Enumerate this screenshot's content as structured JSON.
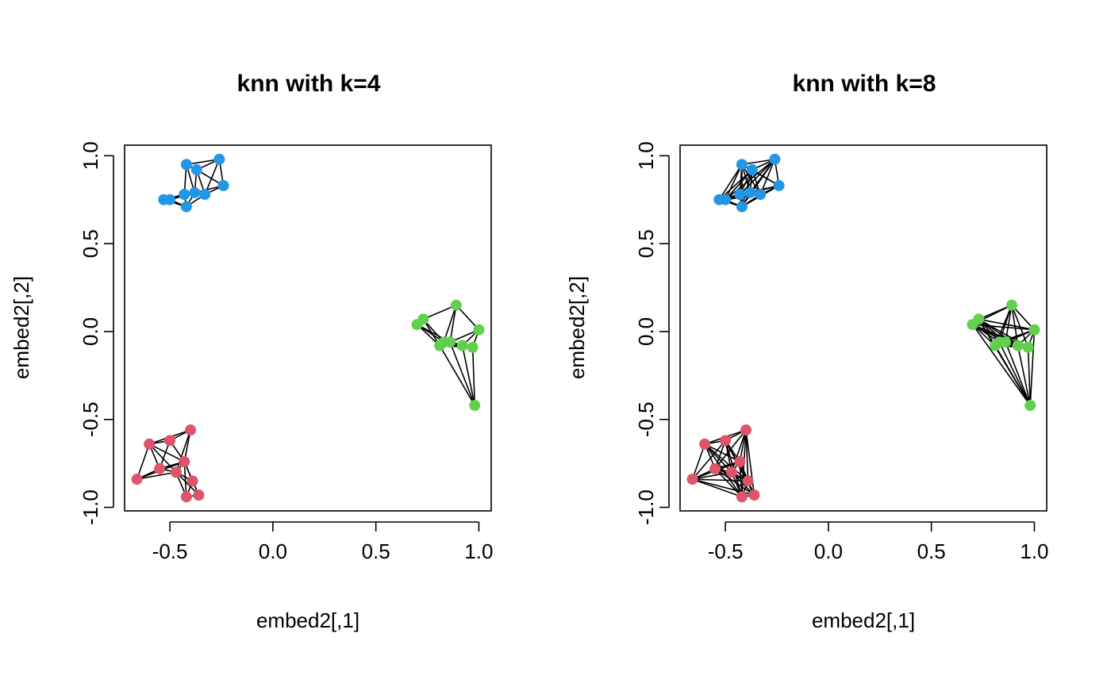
{
  "chart_data": [
    {
      "type": "scatter",
      "title": "knn with k=4",
      "xlabel": "embed2[,1]",
      "ylabel": "embed2[,2]",
      "xlim": [
        -0.72,
        1.06
      ],
      "ylim": [
        -1.02,
        1.06
      ],
      "x_ticks": [
        -0.5,
        0.0,
        0.5,
        1.0
      ],
      "x_tick_labels": [
        "-0.5",
        "0.0",
        "0.5",
        "1.0"
      ],
      "y_ticks": [
        -1.0,
        -0.5,
        0.0,
        0.5,
        1.0
      ],
      "y_tick_labels": [
        "-1.0",
        "-0.5",
        "0.0",
        "0.5",
        "1.0"
      ],
      "k": 4,
      "point_colors": {
        "blue": "#2297E6",
        "green": "#61D04F",
        "red": "#DF536B"
      }
    },
    {
      "type": "scatter",
      "title": "knn with k=8",
      "xlabel": "embed2[,1]",
      "ylabel": "embed2[,2]",
      "xlim": [
        -0.72,
        1.06
      ],
      "ylim": [
        -1.02,
        1.06
      ],
      "x_ticks": [
        -0.5,
        0.0,
        0.5,
        1.0
      ],
      "x_tick_labels": [
        "-0.5",
        "0.0",
        "0.5",
        "1.0"
      ],
      "y_ticks": [
        -1.0,
        -0.5,
        0.0,
        0.5,
        1.0
      ],
      "y_tick_labels": [
        "-1.0",
        "-0.5",
        "0.0",
        "0.5",
        "1.0"
      ],
      "k": 8,
      "point_colors": {
        "blue": "#2297E6",
        "green": "#61D04F",
        "red": "#DF536B"
      }
    }
  ],
  "points": [
    {
      "x": -0.26,
      "y": 0.98,
      "group": "blue"
    },
    {
      "x": -0.42,
      "y": 0.95,
      "group": "blue"
    },
    {
      "x": -0.37,
      "y": 0.92,
      "group": "blue"
    },
    {
      "x": -0.24,
      "y": 0.83,
      "group": "blue"
    },
    {
      "x": -0.38,
      "y": 0.79,
      "group": "blue"
    },
    {
      "x": -0.33,
      "y": 0.78,
      "group": "blue"
    },
    {
      "x": -0.43,
      "y": 0.78,
      "group": "blue"
    },
    {
      "x": -0.53,
      "y": 0.75,
      "group": "blue"
    },
    {
      "x": -0.5,
      "y": 0.75,
      "group": "blue"
    },
    {
      "x": -0.42,
      "y": 0.71,
      "group": "blue"
    },
    {
      "x": 0.89,
      "y": 0.15,
      "group": "green"
    },
    {
      "x": 0.73,
      "y": 0.07,
      "group": "green"
    },
    {
      "x": 0.7,
      "y": 0.04,
      "group": "green"
    },
    {
      "x": 1.0,
      "y": 0.01,
      "group": "green"
    },
    {
      "x": 0.86,
      "y": -0.06,
      "group": "green"
    },
    {
      "x": 0.83,
      "y": -0.06,
      "group": "green"
    },
    {
      "x": 0.81,
      "y": -0.08,
      "group": "green"
    },
    {
      "x": 0.92,
      "y": -0.08,
      "group": "green"
    },
    {
      "x": 0.97,
      "y": -0.09,
      "group": "green"
    },
    {
      "x": 0.98,
      "y": -0.42,
      "group": "green"
    },
    {
      "x": -0.4,
      "y": -0.56,
      "group": "red"
    },
    {
      "x": -0.5,
      "y": -0.62,
      "group": "red"
    },
    {
      "x": -0.6,
      "y": -0.64,
      "group": "red"
    },
    {
      "x": -0.43,
      "y": -0.74,
      "group": "red"
    },
    {
      "x": -0.55,
      "y": -0.78,
      "group": "red"
    },
    {
      "x": -0.47,
      "y": -0.8,
      "group": "red"
    },
    {
      "x": -0.66,
      "y": -0.84,
      "group": "red"
    },
    {
      "x": -0.39,
      "y": -0.85,
      "group": "red"
    },
    {
      "x": -0.36,
      "y": -0.93,
      "group": "red"
    },
    {
      "x": -0.42,
      "y": -0.94,
      "group": "red"
    }
  ]
}
